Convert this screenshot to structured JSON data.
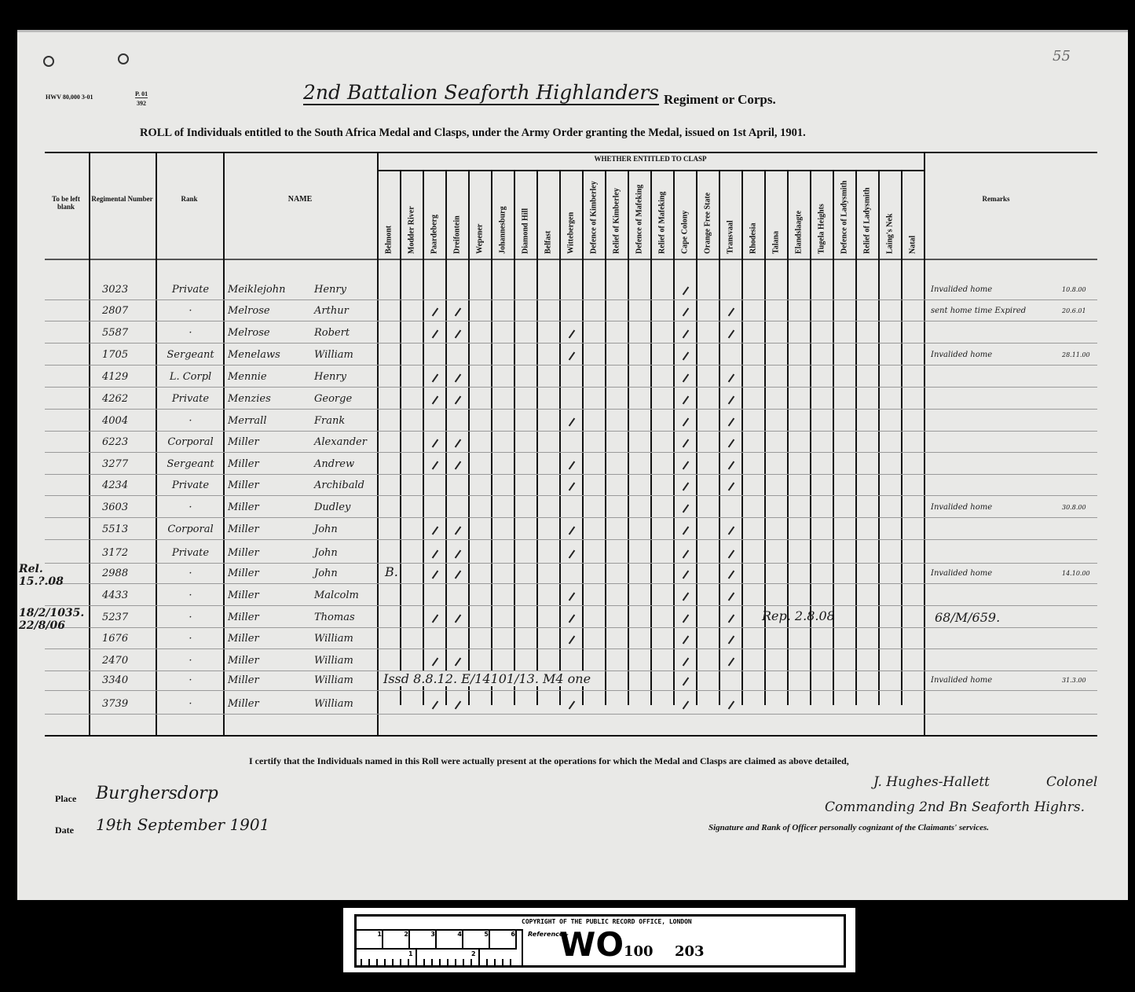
{
  "form_code": "HWV 80,000 3-01",
  "form_ref_top": "P. 01",
  "form_ref_bottom": "392",
  "folio_number": "55",
  "regiment_handwritten": "2nd Battalion Seaforth Highlanders",
  "regiment_label": "Regiment or Corps.",
  "roll_title": "ROLL of Individuals entitled to the South Africa Medal and Clasps, under the Army Order granting the Medal, issued on 1st April, 1901.",
  "columns": {
    "blank": "To be left blank",
    "regimental_number": "Regimental Number",
    "rank": "Rank",
    "name": "NAME",
    "clasp_group": "WHETHER ENTITLED TO CLASP",
    "remarks": "Remarks"
  },
  "clasps": [
    "Belmont",
    "Modder River",
    "Paardeberg",
    "Dreifontein",
    "Wepener",
    "Johannesburg",
    "Diamond Hill",
    "Belfast",
    "Wittebergen",
    "Defence of Kimberley",
    "Relief of Kimberley",
    "Defence of Mafeking",
    "Relief of Mafeking",
    "Cape Colony",
    "Orange Free State",
    "Transvaal",
    "Rhodesia",
    "Talana",
    "Elandslaagte",
    "Tugela Heights",
    "Defence of Ladysmith",
    "Relief of Ladysmith",
    "Laing's Nek",
    "Natal"
  ],
  "rows": [
    {
      "number": "3023",
      "rank": "Private",
      "surname": "Meiklejohn",
      "forename": "Henry",
      "clasps": [
        "Cape Colony"
      ],
      "remark": "Invalided home",
      "remark_date": "10.8.00"
    },
    {
      "number": "2807",
      "rank": "·",
      "surname": "Melrose",
      "forename": "Arthur",
      "clasps": [
        "Paardeberg",
        "Dreifontein",
        "Cape Colony",
        "Transvaal"
      ],
      "remark": "sent home time Expired",
      "remark_date": "20.6.01"
    },
    {
      "number": "5587",
      "rank": "·",
      "surname": "Melrose",
      "forename": "Robert",
      "clasps": [
        "Paardeberg",
        "Dreifontein",
        "Wittebergen",
        "Cape Colony",
        "Transvaal"
      ]
    },
    {
      "number": "1705",
      "rank": "Sergeant",
      "surname": "Menelaws",
      "forename": "William",
      "clasps": [
        "Wittebergen",
        "Cape Colony"
      ],
      "remark": "Invalided home",
      "remark_date": "28.11.00"
    },
    {
      "number": "4129",
      "rank": "L. Corpl",
      "surname": "Mennie",
      "forename": "Henry",
      "clasps": [
        "Paardeberg",
        "Dreifontein",
        "Cape Colony",
        "Transvaal"
      ]
    },
    {
      "number": "4262",
      "rank": "Private",
      "surname": "Menzies",
      "forename": "George",
      "clasps": [
        "Paardeberg",
        "Dreifontein",
        "Cape Colony",
        "Transvaal"
      ]
    },
    {
      "number": "4004",
      "rank": "·",
      "surname": "Merrall",
      "forename": "Frank",
      "clasps": [
        "Wittebergen",
        "Cape Colony",
        "Transvaal"
      ]
    },
    {
      "number": "6223",
      "rank": "Corporal",
      "surname": "Miller",
      "forename": "Alexander",
      "clasps": [
        "Paardeberg",
        "Dreifontein",
        "Cape Colony",
        "Transvaal"
      ]
    },
    {
      "number": "3277",
      "rank": "Sergeant",
      "surname": "Miller",
      "forename": "Andrew",
      "clasps": [
        "Paardeberg",
        "Dreifontein",
        "Wittebergen",
        "Cape Colony",
        "Transvaal"
      ]
    },
    {
      "number": "4234",
      "rank": "Private",
      "surname": "Miller",
      "forename": "Archibald",
      "clasps": [
        "Wittebergen",
        "Cape Colony",
        "Transvaal"
      ]
    },
    {
      "number": "3603",
      "rank": "·",
      "surname": "Miller",
      "forename": "Dudley",
      "clasps": [
        "Cape Colony"
      ],
      "remark": "Invalided home",
      "remark_date": "30.8.00"
    },
    {
      "number": "5513",
      "rank": "Corporal",
      "surname": "Miller",
      "forename": "John",
      "clasps": [
        "Paardeberg",
        "Dreifontein",
        "Wittebergen",
        "Cape Colony",
        "Transvaal"
      ]
    },
    {
      "number": "3172",
      "rank": "Private",
      "surname": "Miller",
      "forename": "John",
      "clasps": [
        "Paardeberg",
        "Dreifontein",
        "Wittebergen",
        "Cape Colony",
        "Transvaal"
      ]
    },
    {
      "number": "2988",
      "rank": "·",
      "surname": "Miller",
      "forename": "John",
      "clasps": [
        "Paardeberg",
        "Dreifontein",
        "Cape Colony",
        "Transvaal"
      ],
      "margin_note": "Rel. 15.?.08",
      "inline_note": "B.",
      "remark": "Invalided home",
      "remark_date": "14.10.00"
    },
    {
      "number": "4433",
      "rank": "·",
      "surname": "Miller",
      "forename": "Malcolm",
      "clasps": [
        "Wittebergen",
        "Cape Colony",
        "Transvaal"
      ]
    },
    {
      "number": "5237",
      "rank": "·",
      "surname": "Miller",
      "forename": "Thomas",
      "clasps": [
        "Paardeberg",
        "Dreifontein",
        "Wittebergen",
        "Cape Colony",
        "Transvaal"
      ],
      "margin_note": "18/2/1035. 22/8/06",
      "inline_note": "Rep. 2.8.08",
      "remark": "68/M/659."
    },
    {
      "number": "1676",
      "rank": "·",
      "surname": "Miller",
      "forename": "William",
      "clasps": [
        "Wittebergen",
        "Cape Colony",
        "Transvaal"
      ]
    },
    {
      "number": "2470",
      "rank": "·",
      "surname": "Miller",
      "forename": "William",
      "clasps": [
        "Paardeberg",
        "Dreifontein",
        "Cape Colony",
        "Transvaal"
      ]
    },
    {
      "number": "3340",
      "rank": "·",
      "surname": "Miller",
      "forename": "William",
      "clasps": [
        "Cape Colony"
      ],
      "inline_note": "Issd 8.8.12. E/14101/13. M4 one",
      "remark": "Invalided home",
      "remark_date": "31.3.00"
    },
    {
      "number": "3739",
      "rank": "·",
      "surname": "Miller",
      "forename": "William",
      "clasps": [
        "Paardeberg",
        "Dreifontein",
        "Wittebergen",
        "Cape Colony",
        "Transvaal"
      ]
    }
  ],
  "certification": "I certify that the Individuals named in this Roll were actually present at the operations for which the Medal and Clasps are claimed as above detailed,",
  "place_label": "Place",
  "place_value": "Burghersdorp",
  "date_label": "Date",
  "date_value": "19th September 1901",
  "signature": "J. Hughes-Hallett",
  "signature_rank": "Colonel",
  "signature_command": "Commanding 2nd Bn Seaforth Highrs.",
  "signature_caption": "Signature and Rank of Officer personally cognizant of the Claimants' services.",
  "archive": {
    "copyright": "COPYRIGHT OF THE PUBLIC RECORD OFFICE, LONDON",
    "ruler_cm": [
      "1",
      "2",
      "3",
      "4",
      "5",
      "6"
    ],
    "ruler_in": [
      "1",
      "2"
    ],
    "reference_label": "Reference:-",
    "series": "WO",
    "piece": "100",
    "item": "203"
  }
}
